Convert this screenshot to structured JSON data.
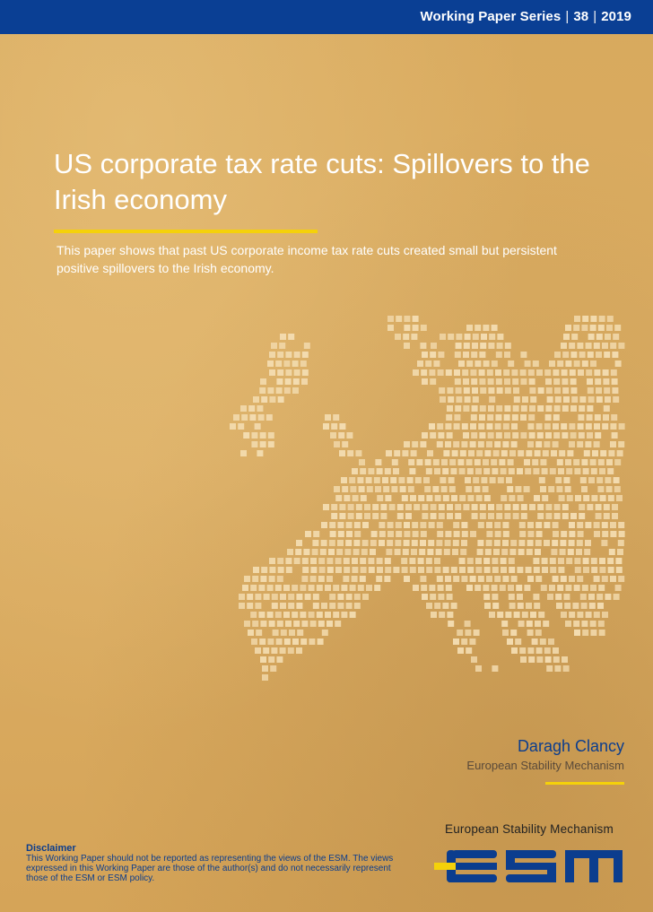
{
  "header": {
    "series_label": "Working Paper Series",
    "number": "38",
    "year": "2019",
    "bar_color": "#0a3f94"
  },
  "cover": {
    "title": "US corporate tax rate cuts: Spillovers to the Irish economy",
    "abstract": "This paper shows that past US corporate income tax rate cuts created small but persistent positive spillovers to the Irish economy.",
    "accent_color": "#f5d10a",
    "background_color": "#d9aa5f"
  },
  "author": {
    "name": "Daragh Clancy",
    "affiliation": "European Stability Mechanism"
  },
  "disclaimer": {
    "heading": "Disclaimer",
    "text": "This Working Paper should not be reported as representing the views of the ESM. The views expressed in this Working Paper are those of the author(s) and do not necessarily represent those of the ESM or ESM policy."
  },
  "logo": {
    "caption": "European Stability Mechanism",
    "wordmark": "esm",
    "color": "#0b3d8e"
  }
}
